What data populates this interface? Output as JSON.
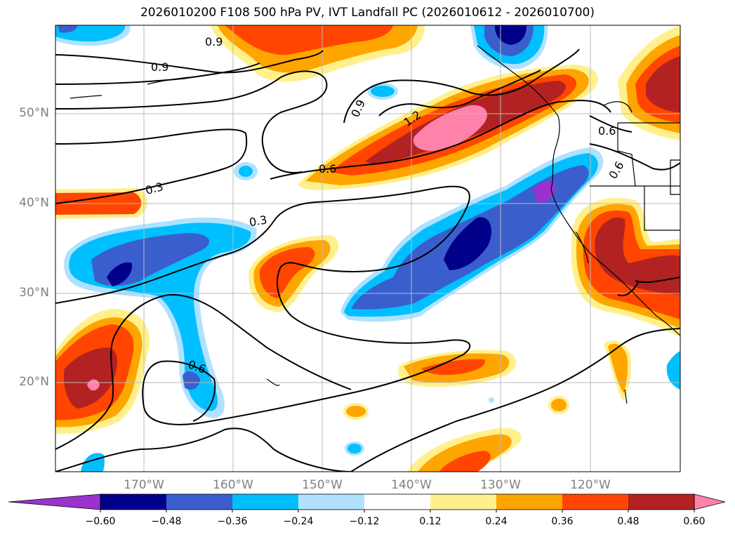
{
  "title": "2026010200 F108 500 hPa PV, IVT Landfall PC (2026010612 - 2026010700)",
  "lat_labels": [
    "50°N",
    "40°N",
    "30°N",
    "20°N"
  ],
  "lon_labels": [
    "170°W",
    "160°W",
    "150°W",
    "140°W",
    "130°W",
    "120°W"
  ],
  "contour_labels": [
    "0.9",
    "0.9",
    "0.9",
    "1.2",
    "0.6",
    "0.6",
    "0.6",
    "0.3",
    "0.3",
    "0.6"
  ],
  "colorbar": {
    "ticks": [
      "−0.60",
      "−0.48",
      "−0.36",
      "−0.24",
      "−0.12",
      "0.12",
      "0.24",
      "0.36",
      "0.48",
      "0.60"
    ],
    "colors": [
      "#9a32cd",
      "#00008b",
      "#3a5fcd",
      "#00bfff",
      "#b0e2ff",
      "#ffffff",
      "#fff08c",
      "#ffa500",
      "#ff4500",
      "#b22222",
      "#ff82ab"
    ],
    "under_color": "#9a32cd",
    "over_color": "#ff82ab"
  }
}
